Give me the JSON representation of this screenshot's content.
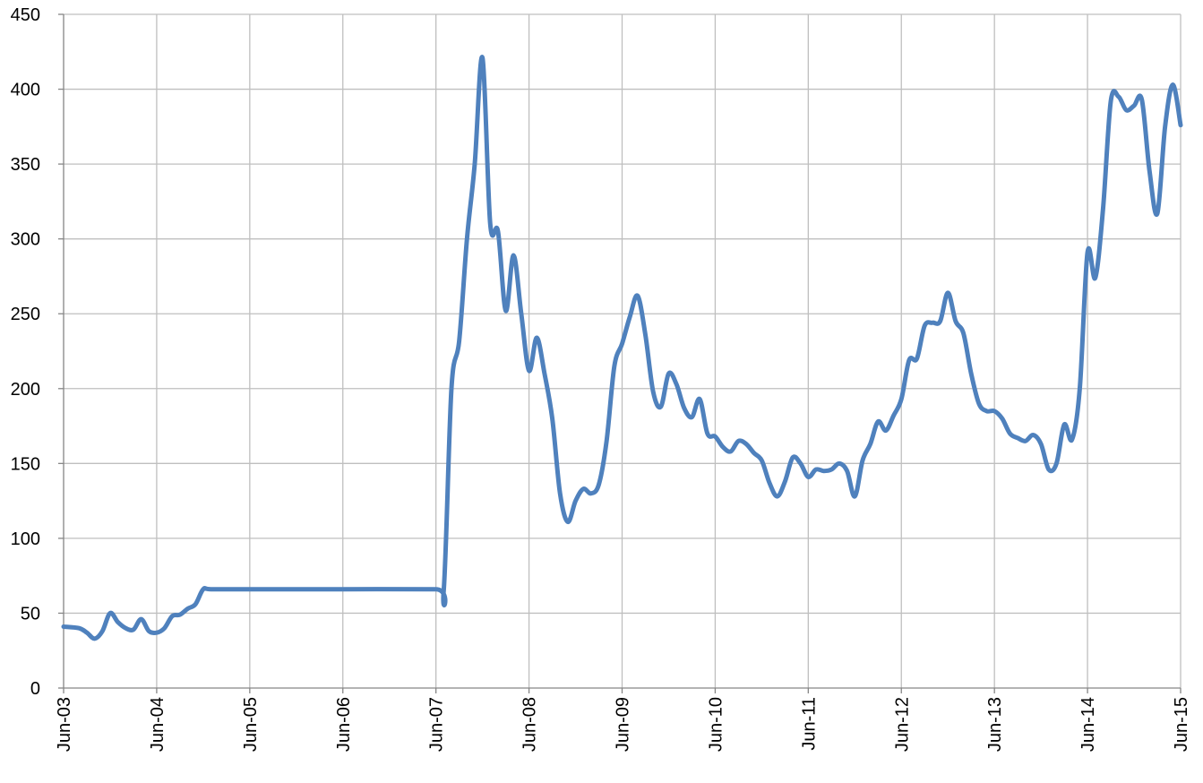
{
  "chart_data": {
    "type": "line",
    "title": "",
    "xlabel": "",
    "ylabel": "",
    "ylim": [
      0,
      450
    ],
    "yticks": [
      0,
      50,
      100,
      150,
      200,
      250,
      300,
      350,
      400,
      450
    ],
    "xlim": [
      "2003-06",
      "2015-06"
    ],
    "xticks": [
      "Jun-03",
      "Jun-04",
      "Jun-05",
      "Jun-06",
      "Jun-07",
      "Jun-08",
      "Jun-09",
      "Jun-10",
      "Jun-11",
      "Jun-12",
      "Jun-13",
      "Jun-14",
      "Jun-15"
    ],
    "grid": true,
    "legend": "none",
    "series": [
      {
        "color": "#4F81BD",
        "points": [
          [
            "2003-06",
            41
          ],
          [
            "2003-08",
            40
          ],
          [
            "2003-09",
            37
          ],
          [
            "2003-10",
            33
          ],
          [
            "2003-11",
            38
          ],
          [
            "2003-12",
            50
          ],
          [
            "2004-01",
            44
          ],
          [
            "2004-02",
            40
          ],
          [
            "2004-03",
            39
          ],
          [
            "2004-04",
            46
          ],
          [
            "2004-05",
            38
          ],
          [
            "2004-06",
            37
          ],
          [
            "2004-07",
            40
          ],
          [
            "2004-08",
            48
          ],
          [
            "2004-09",
            49
          ],
          [
            "2004-10",
            53
          ],
          [
            "2004-11",
            56
          ],
          [
            "2004-12",
            66
          ],
          [
            "2005-01",
            66
          ],
          [
            "2005-06",
            66
          ],
          [
            "2006-06",
            66
          ],
          [
            "2007-06",
            66
          ],
          [
            "2007-07",
            65
          ],
          [
            "2007-08",
            200
          ],
          [
            "2007-09",
            232
          ],
          [
            "2007-10",
            300
          ],
          [
            "2007-11",
            350
          ],
          [
            "2007-12",
            421
          ],
          [
            "2008-01",
            310
          ],
          [
            "2008-02",
            305
          ],
          [
            "2008-03",
            252
          ],
          [
            "2008-04",
            289
          ],
          [
            "2008-05",
            250
          ],
          [
            "2008-06",
            212
          ],
          [
            "2008-07",
            234
          ],
          [
            "2008-08",
            210
          ],
          [
            "2008-09",
            180
          ],
          [
            "2008-10",
            130
          ],
          [
            "2008-11",
            111
          ],
          [
            "2008-12",
            125
          ],
          [
            "2009-01",
            133
          ],
          [
            "2009-02",
            130
          ],
          [
            "2009-03",
            136
          ],
          [
            "2009-04",
            165
          ],
          [
            "2009-05",
            215
          ],
          [
            "2009-06",
            230
          ],
          [
            "2009-07",
            248
          ],
          [
            "2009-08",
            262
          ],
          [
            "2009-09",
            236
          ],
          [
            "2009-10",
            198
          ],
          [
            "2009-11",
            188
          ],
          [
            "2009-12",
            210
          ],
          [
            "2010-01",
            203
          ],
          [
            "2010-02",
            187
          ],
          [
            "2010-03",
            181
          ],
          [
            "2010-04",
            193
          ],
          [
            "2010-05",
            170
          ],
          [
            "2010-06",
            168
          ],
          [
            "2010-07",
            161
          ],
          [
            "2010-08",
            158
          ],
          [
            "2010-09",
            165
          ],
          [
            "2010-10",
            163
          ],
          [
            "2010-11",
            157
          ],
          [
            "2010-12",
            152
          ],
          [
            "2011-01",
            137
          ],
          [
            "2011-02",
            128
          ],
          [
            "2011-03",
            138
          ],
          [
            "2011-04",
            154
          ],
          [
            "2011-05",
            150
          ],
          [
            "2011-06",
            141
          ],
          [
            "2011-07",
            146
          ],
          [
            "2011-08",
            145
          ],
          [
            "2011-09",
            146
          ],
          [
            "2011-10",
            150
          ],
          [
            "2011-11",
            145
          ],
          [
            "2011-12",
            128
          ],
          [
            "2012-01",
            152
          ],
          [
            "2012-02",
            163
          ],
          [
            "2012-03",
            178
          ],
          [
            "2012-04",
            172
          ],
          [
            "2012-05",
            182
          ],
          [
            "2012-06",
            193
          ],
          [
            "2012-07",
            219
          ],
          [
            "2012-08",
            220
          ],
          [
            "2012-09",
            242
          ],
          [
            "2012-10",
            244
          ],
          [
            "2012-11",
            245
          ],
          [
            "2012-12",
            264
          ],
          [
            "2013-01",
            245
          ],
          [
            "2013-02",
            237
          ],
          [
            "2013-03",
            210
          ],
          [
            "2013-04",
            190
          ],
          [
            "2013-05",
            185
          ],
          [
            "2013-06",
            185
          ],
          [
            "2013-07",
            180
          ],
          [
            "2013-08",
            170
          ],
          [
            "2013-09",
            167
          ],
          [
            "2013-10",
            165
          ],
          [
            "2013-11",
            169
          ],
          [
            "2013-12",
            163
          ],
          [
            "2014-01",
            146
          ],
          [
            "2014-02",
            150
          ],
          [
            "2014-03",
            176
          ],
          [
            "2014-04",
            166
          ],
          [
            "2014-05",
            200
          ],
          [
            "2014-06",
            291
          ],
          [
            "2014-07",
            274
          ],
          [
            "2014-08",
            320
          ],
          [
            "2014-09",
            392
          ],
          [
            "2014-10",
            395
          ],
          [
            "2014-11",
            386
          ],
          [
            "2014-12",
            389
          ],
          [
            "2015-01",
            393
          ],
          [
            "2015-02",
            345
          ],
          [
            "2015-03",
            317
          ],
          [
            "2015-04",
            375
          ],
          [
            "2015-05",
            403
          ],
          [
            "2015-06",
            376
          ]
        ]
      }
    ]
  }
}
